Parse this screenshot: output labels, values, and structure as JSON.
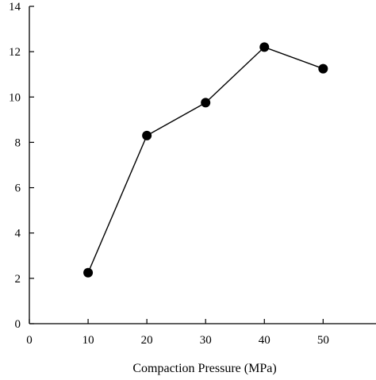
{
  "chart_data": {
    "type": "line",
    "title": "",
    "xlabel": "Compaction Pressure (MPa)",
    "ylabel": "",
    "x": [
      10,
      20,
      30,
      40,
      50
    ],
    "series": [
      {
        "values": [
          2.25,
          8.3,
          9.75,
          12.2,
          11.25
        ]
      }
    ],
    "xlim": [
      0,
      59
    ],
    "ylim": [
      0,
      14
    ],
    "xticks": [
      0,
      10,
      20,
      30,
      40,
      50
    ],
    "yticks": [
      0,
      2,
      4,
      6,
      8,
      10,
      12,
      14
    ],
    "xtick_labels": [
      "0",
      "10",
      "20",
      "30",
      "40",
      "50"
    ],
    "ytick_labels": [
      "0",
      "2",
      "4",
      "6",
      "8",
      "10",
      "12",
      "14"
    ],
    "marker": "filled-circle",
    "line_color": "#000000",
    "marker_color": "#000000",
    "grid": false,
    "legend": "none"
  }
}
